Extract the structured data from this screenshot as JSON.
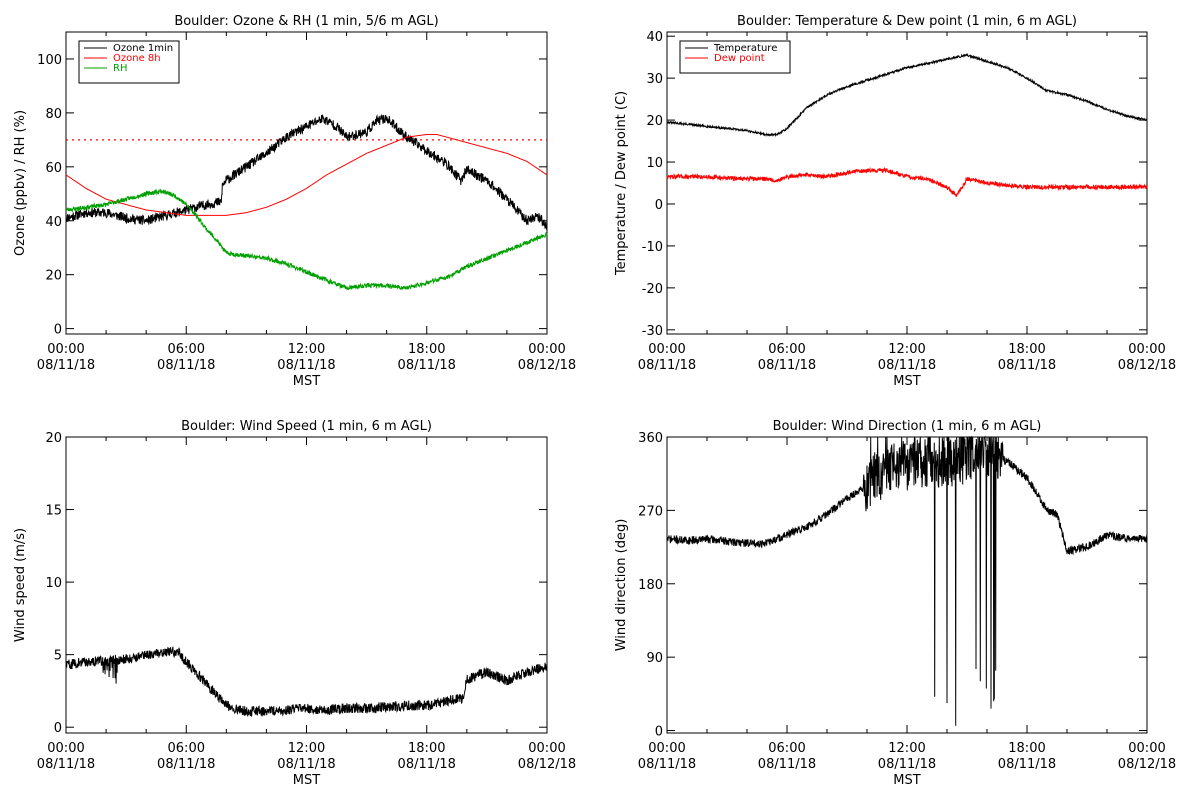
{
  "chart_data": [
    {
      "id": "ozone",
      "type": "line",
      "title": "Boulder: Ozone & RH (1 min, 5/6 m AGL)",
      "xlabel": "MST",
      "ylabel": "Ozone (ppbv) / RH (%)",
      "xlim": [
        0,
        24
      ],
      "ylim": [
        -2,
        110
      ],
      "yticks": [
        0,
        20,
        40,
        60,
        80,
        100
      ],
      "xticks": [
        {
          "h": 0,
          "time": "00:00",
          "date": "08/11/18"
        },
        {
          "h": 6,
          "time": "06:00",
          "date": "08/11/18"
        },
        {
          "h": 12,
          "time": "12:00",
          "date": "08/11/18"
        },
        {
          "h": 18,
          "time": "18:00",
          "date": "08/11/18"
        },
        {
          "h": 24,
          "time": "00:00",
          "date": "08/12/18"
        }
      ],
      "hlines": [
        {
          "y": 70,
          "color": "#ff0000",
          "style": "dotted"
        }
      ],
      "legend": {
        "position": "top-left",
        "entries": [
          {
            "label": "Ozone 1min",
            "color": "#000000"
          },
          {
            "label": "Ozone 8h",
            "color": "#ff0000"
          },
          {
            "label": "RH",
            "color": "#00a000"
          }
        ]
      },
      "series": [
        {
          "name": "Ozone 1min",
          "color": "#000000",
          "noise": 1.8,
          "seed": 11,
          "x": [
            0,
            1,
            2,
            3,
            4,
            5,
            6,
            7,
            7.75,
            7.8,
            8,
            9,
            10,
            11,
            12,
            12.8,
            13.5,
            14,
            15,
            15.5,
            16,
            17,
            18,
            19,
            19.7,
            20,
            21,
            22,
            23,
            23.5,
            24
          ],
          "y": [
            41,
            43,
            43,
            41,
            40,
            42,
            44,
            46,
            47,
            53,
            55,
            60,
            65,
            71,
            75,
            78,
            75,
            71,
            73,
            77,
            78,
            71,
            66,
            61,
            55,
            59,
            55,
            48,
            40,
            42,
            38
          ]
        },
        {
          "name": "Ozone 8h",
          "color": "#ff0000",
          "noise": 0,
          "seed": 0,
          "x": [
            0,
            1,
            2,
            3,
            4,
            5,
            6,
            7,
            8,
            9,
            10,
            11,
            12,
            13,
            14,
            15,
            16,
            17,
            18,
            18.5,
            19,
            20,
            21,
            22,
            23,
            24
          ],
          "y": [
            57,
            52,
            48,
            46,
            44,
            43,
            42,
            42,
            42,
            43,
            45,
            48,
            52,
            57,
            61,
            65,
            68,
            71,
            72,
            72,
            71,
            69,
            67,
            65,
            62,
            57
          ]
        },
        {
          "name": "RH",
          "color": "#00a000",
          "noise": 0.8,
          "seed": 23,
          "x": [
            0,
            1,
            2,
            3,
            4,
            4.8,
            5.5,
            6,
            6.5,
            7,
            7.5,
            8,
            9,
            10,
            11,
            12,
            13,
            14,
            15,
            16,
            17,
            18,
            19,
            20,
            21,
            22,
            23,
            24
          ],
          "y": [
            44,
            45,
            46,
            48,
            50,
            51,
            49,
            46,
            42,
            37,
            33,
            28,
            27,
            26,
            24,
            21,
            18,
            15,
            16,
            16,
            15,
            17,
            19,
            23,
            26,
            29,
            32,
            35
          ]
        }
      ]
    },
    {
      "id": "temp",
      "type": "line",
      "title": "Boulder: Temperature & Dew point (1 min, 6 m AGL)",
      "xlabel": "MST",
      "ylabel": "Temperature / Dew point (C)",
      "xlim": [
        0,
        24
      ],
      "ylim": [
        -31,
        41
      ],
      "yticks": [
        -30,
        -20,
        -10,
        0,
        10,
        20,
        30,
        40
      ],
      "xticks": [
        {
          "h": 0,
          "time": "00:00",
          "date": "08/11/18"
        },
        {
          "h": 6,
          "time": "06:00",
          "date": "08/11/18"
        },
        {
          "h": 12,
          "time": "12:00",
          "date": "08/11/18"
        },
        {
          "h": 18,
          "time": "18:00",
          "date": "08/11/18"
        },
        {
          "h": 24,
          "time": "00:00",
          "date": "08/12/18"
        }
      ],
      "hlines": [],
      "legend": {
        "position": "top-left",
        "entries": [
          {
            "label": "Temperature",
            "color": "#000000"
          },
          {
            "label": "Dew point",
            "color": "#ff0000"
          }
        ]
      },
      "series": [
        {
          "name": "Temperature",
          "color": "#000000",
          "noise": 0.25,
          "seed": 31,
          "x": [
            0,
            1,
            2,
            3,
            4,
            5,
            5.5,
            6,
            7,
            8,
            9,
            10,
            11,
            12,
            13,
            14,
            15,
            16,
            17,
            18,
            19,
            20,
            21,
            22,
            23,
            24
          ],
          "y": [
            19.5,
            19,
            18.5,
            18,
            17.5,
            16.5,
            16.5,
            18,
            23,
            26,
            28,
            29.5,
            31,
            32.5,
            33.5,
            34.5,
            35.5,
            34,
            32.5,
            30,
            27,
            26,
            24.5,
            22.5,
            21,
            20
          ]
        },
        {
          "name": "Dew point",
          "color": "#ff0000",
          "noise": 0.5,
          "seed": 47,
          "x": [
            0,
            1,
            2,
            3,
            4,
            5,
            5.5,
            6,
            7,
            8,
            9,
            10,
            11,
            12,
            13,
            14,
            14.5,
            15,
            16,
            17,
            18,
            19,
            20,
            21,
            22,
            23,
            24
          ],
          "y": [
            6.5,
            6.5,
            6.5,
            6.2,
            6,
            6,
            5.5,
            6.5,
            7,
            6.5,
            7.5,
            8,
            8,
            6.5,
            6,
            4,
            2,
            6,
            5,
            4.5,
            4,
            4,
            4,
            4,
            4,
            4,
            4
          ]
        }
      ]
    },
    {
      "id": "wspd",
      "type": "line",
      "title": "Boulder: Wind Speed (1 min, 6 m AGL)",
      "xlabel": "MST",
      "ylabel": "Wind speed (m/s)",
      "xlim": [
        0,
        24
      ],
      "ylim": [
        -0.4,
        20
      ],
      "yticks": [
        0,
        5,
        10,
        15,
        20
      ],
      "xticks": [
        {
          "h": 0,
          "time": "00:00",
          "date": "08/11/18"
        },
        {
          "h": 6,
          "time": "06:00",
          "date": "08/11/18"
        },
        {
          "h": 12,
          "time": "12:00",
          "date": "08/11/18"
        },
        {
          "h": 18,
          "time": "18:00",
          "date": "08/11/18"
        },
        {
          "h": 24,
          "time": "00:00",
          "date": "08/12/18"
        }
      ],
      "hlines": [],
      "legend": null,
      "series": [
        {
          "name": "Wind speed",
          "color": "#000000",
          "noise": 0.35,
          "seed": 59,
          "x": [
            0,
            1,
            2,
            3,
            4,
            5,
            5.6,
            6,
            7,
            8,
            9,
            10,
            11,
            12,
            13,
            14,
            15,
            16,
            17,
            18,
            19,
            19.8,
            20,
            21,
            22,
            23,
            24
          ],
          "y": [
            4.3,
            4.5,
            4.6,
            4.7,
            5,
            5.2,
            5.2,
            4.5,
            3,
            1.5,
            1.1,
            1.1,
            1.2,
            1.3,
            1.2,
            1.3,
            1.3,
            1.4,
            1.5,
            1.5,
            1.8,
            2,
            3.3,
            3.8,
            3.2,
            3.8,
            4.2
          ]
        }
      ]
    },
    {
      "id": "wdir",
      "type": "line",
      "title": "Boulder: Wind Direction (1 min, 6 m AGL)",
      "xlabel": "MST",
      "ylabel": "Wind direction (deg)",
      "xlim": [
        0,
        24
      ],
      "ylim": [
        -3,
        360
      ],
      "yticks": [
        0,
        90,
        180,
        270,
        360
      ],
      "xticks": [
        {
          "h": 0,
          "time": "00:00",
          "date": "08/11/18"
        },
        {
          "h": 6,
          "time": "06:00",
          "date": "08/11/18"
        },
        {
          "h": 12,
          "time": "12:00",
          "date": "08/11/18"
        },
        {
          "h": 18,
          "time": "18:00",
          "date": "08/11/18"
        },
        {
          "h": 24,
          "time": "00:00",
          "date": "08/12/18"
        }
      ],
      "hlines": [],
      "legend": null,
      "series": [
        {
          "name": "Wind direction",
          "color": "#000000",
          "noise": 5,
          "seed": 71,
          "x": [
            0,
            1,
            2,
            3,
            4,
            5,
            6,
            7,
            8,
            9,
            10,
            11,
            12,
            13,
            14,
            15,
            16,
            17,
            18,
            19,
            19.5,
            20,
            21,
            22,
            23,
            24
          ],
          "y": [
            235,
            233,
            235,
            232,
            230,
            230,
            240,
            250,
            265,
            285,
            300,
            320,
            325,
            330,
            330,
            335,
            340,
            330,
            310,
            270,
            265,
            220,
            225,
            240,
            235,
            235
          ]
        }
      ]
    }
  ]
}
